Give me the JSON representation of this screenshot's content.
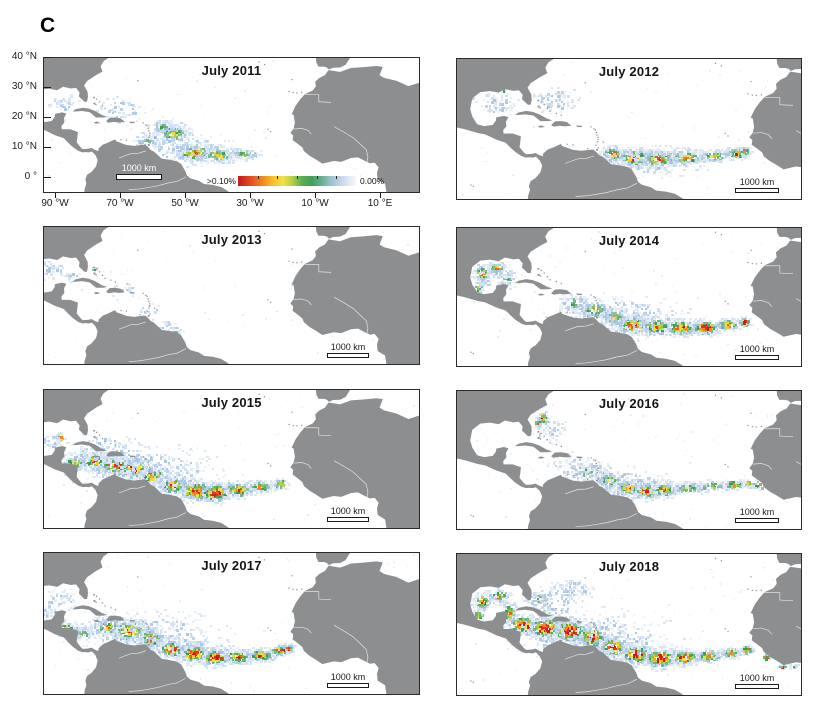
{
  "figure": {
    "panel_label": "C",
    "scalebar_label": "1000 km",
    "colorbar": {
      "left_label": ">0.10%",
      "right_label": "0.00%"
    },
    "axes": {
      "y_labels": [
        {
          "text": "40 °N",
          "lat": 40
        },
        {
          "text": "30 °N",
          "lat": 30
        },
        {
          "text": "20 °N",
          "lat": 20
        },
        {
          "text": "10 °N",
          "lat": 10
        },
        {
          "text": "0 °",
          "lat": 0
        }
      ],
      "x_labels": [
        {
          "text": "90 °W",
          "lon": -90
        },
        {
          "text": "70 °W",
          "lon": -70
        },
        {
          "text": "50 °W",
          "lon": -50
        },
        {
          "text": "30 °W",
          "lon": -30
        },
        {
          "text": "10 °W",
          "lon": -10
        },
        {
          "text": "10 °E",
          "lon": 10
        }
      ]
    },
    "land_color": "#8c8e90",
    "ocean_color": "#ffffff"
  },
  "map_data": {
    "type": "map-grid",
    "description": "Monthly Sargassum areal coverage (%) in the Atlantic, July of 2011-2018; color scale from >0.10% (red) to 0.00% (white-blue)",
    "bloom_format": [
      "lon",
      "lat",
      "radius_lon_deg",
      "radius_lat_deg",
      "n_points",
      "intensity_0_to_1"
    ],
    "panels": [
      {
        "title": "July 2011",
        "year": 2011,
        "month": "July",
        "blooms": [
          [
            -54,
            14.8,
            4,
            2.6,
            120,
            0.55
          ],
          [
            -57,
            17,
            3,
            2,
            50,
            0.3
          ],
          [
            -47.5,
            8.3,
            5,
            2.3,
            160,
            0.62
          ],
          [
            -40,
            7.6,
            4.5,
            2,
            100,
            0.45
          ],
          [
            -32,
            7.8,
            4,
            1.5,
            55,
            0.35
          ],
          [
            -62,
            12.5,
            3,
            2,
            40,
            0.25
          ],
          [
            -70,
            23,
            5,
            3,
            30,
            0.07
          ],
          [
            -88,
            25,
            3,
            2,
            22,
            0.08
          ],
          [
            -50,
            10,
            10,
            4,
            90,
            0.05
          ]
        ]
      },
      {
        "title": "July 2012",
        "year": 2012,
        "month": "July",
        "blooms": [
          [
            -57,
            9.5,
            2.5,
            2,
            80,
            0.68
          ],
          [
            -51,
            8.3,
            4,
            2.4,
            170,
            0.8
          ],
          [
            -44,
            8,
            4.5,
            2,
            130,
            0.62
          ],
          [
            -36,
            8.5,
            4.5,
            1.8,
            100,
            0.55
          ],
          [
            -28,
            9,
            4,
            1.5,
            80,
            0.5
          ],
          [
            -21.5,
            9.8,
            2.5,
            1.4,
            60,
            0.55
          ],
          [
            -18.8,
            10.3,
            1.2,
            1,
            25,
            0.78
          ],
          [
            -90,
            25.5,
            4,
            2.5,
            45,
            0.1
          ],
          [
            -73,
            27,
            5,
            3,
            45,
            0.07
          ],
          [
            -88.3,
            30.2,
            0.6,
            0.5,
            7,
            0.55
          ],
          [
            -97.5,
            28,
            0.6,
            0.5,
            5,
            0.5
          ],
          [
            -47,
            7.2,
            13,
            3.5,
            140,
            0.05
          ]
        ]
      },
      {
        "title": "July 2013",
        "year": 2013,
        "month": "July",
        "blooms": [
          [
            -91.5,
            25.5,
            3,
            2,
            25,
            0.12
          ],
          [
            -95,
            27.5,
            2,
            1.5,
            14,
            0.1
          ],
          [
            -85.5,
            24,
            2,
            1.5,
            10,
            0.08
          ],
          [
            -78.3,
            26.4,
            0.7,
            0.6,
            6,
            0.45
          ],
          [
            -53,
            5.6,
            1.2,
            1.8,
            14,
            0.5
          ],
          [
            -55.5,
            7.5,
            2,
            1.5,
            10,
            0.15
          ],
          [
            -61,
            12.5,
            2.5,
            2,
            8,
            0.08
          ],
          [
            -70,
            20,
            4,
            3,
            8,
            0.05
          ]
        ]
      },
      {
        "title": "July 2014",
        "year": 2014,
        "month": "July",
        "blooms": [
          [
            -94.5,
            25.3,
            2.3,
            2.3,
            55,
            0.6
          ],
          [
            -90.5,
            27,
            2.5,
            1.5,
            45,
            0.5
          ],
          [
            -95.6,
            20.8,
            1.2,
            1.2,
            25,
            0.72
          ],
          [
            -87.5,
            23.5,
            2,
            2,
            28,
            0.3
          ],
          [
            -68,
            15.5,
            3.5,
            2.2,
            60,
            0.35
          ],
          [
            -62.5,
            13.5,
            3.5,
            2.5,
            80,
            0.5
          ],
          [
            -56.5,
            11,
            3,
            2,
            85,
            0.55
          ],
          [
            -51,
            8.5,
            4,
            2.5,
            150,
            0.7
          ],
          [
            -44.5,
            8,
            4,
            2.2,
            140,
            0.65
          ],
          [
            -37.5,
            7.5,
            4,
            2,
            140,
            0.75
          ],
          [
            -30.5,
            7.5,
            3.5,
            1.8,
            150,
            0.9
          ],
          [
            -24,
            8.5,
            3,
            1.5,
            80,
            0.7
          ],
          [
            -19.2,
            9.3,
            1.5,
            1.2,
            40,
            0.85
          ],
          [
            -55,
            11,
            14,
            5,
            170,
            0.05
          ],
          [
            -91,
            24,
            5,
            3.5,
            45,
            0.06
          ]
        ]
      },
      {
        "title": "July 2015",
        "year": 2015,
        "month": "July",
        "blooms": [
          [
            -84.5,
            16.5,
            3,
            2,
            70,
            0.5
          ],
          [
            -78.5,
            17,
            4,
            2.5,
            90,
            0.52
          ],
          [
            -72,
            15.5,
            4.5,
            2.5,
            150,
            0.75
          ],
          [
            -66,
            14.5,
            4,
            2.5,
            140,
            0.75
          ],
          [
            -60.5,
            12,
            3.5,
            2.5,
            95,
            0.6
          ],
          [
            -54,
            9,
            4,
            2.5,
            130,
            0.65
          ],
          [
            -47,
            7,
            4.5,
            2.5,
            200,
            0.9
          ],
          [
            -41,
            6.5,
            4,
            2.5,
            170,
            0.85
          ],
          [
            -34,
            7.5,
            4,
            2,
            110,
            0.6
          ],
          [
            -27,
            8.5,
            3.5,
            1.5,
            70,
            0.5
          ],
          [
            -21,
            9.5,
            2,
            1.2,
            45,
            0.6
          ],
          [
            -89,
            24.8,
            1,
            1,
            14,
            0.75
          ],
          [
            -91.5,
            23.5,
            3,
            2,
            22,
            0.15
          ],
          [
            -62,
            13.5,
            16,
            6,
            220,
            0.05
          ],
          [
            -75,
            20.5,
            8,
            4,
            80,
            0.06
          ]
        ]
      },
      {
        "title": "July 2016",
        "year": 2016,
        "month": "July",
        "blooms": [
          [
            -77.2,
            31.5,
            0.9,
            1.7,
            30,
            0.85
          ],
          [
            -78.6,
            29.5,
            0.8,
            1.2,
            14,
            0.6
          ],
          [
            -75,
            27.5,
            4,
            3,
            30,
            0.06
          ],
          [
            -65,
            14,
            5,
            2.5,
            60,
            0.25
          ],
          [
            -58,
            11,
            3.5,
            2,
            75,
            0.45
          ],
          [
            -52.5,
            8.5,
            3.5,
            2.2,
            110,
            0.6
          ],
          [
            -47.5,
            7.5,
            3,
            2,
            130,
            0.85
          ],
          [
            -42.5,
            8,
            3.5,
            2,
            100,
            0.6
          ],
          [
            -35.5,
            8.5,
            4,
            1.5,
            55,
            0.4
          ],
          [
            -28.5,
            9,
            4,
            1.3,
            50,
            0.45
          ],
          [
            -22,
            9.5,
            2.5,
            1.2,
            45,
            0.55
          ],
          [
            -18.2,
            9.8,
            1.2,
            1,
            18,
            0.7
          ],
          [
            -15,
            9.5,
            1.8,
            1.6,
            16,
            0.45
          ],
          [
            -55,
            9.5,
            12,
            4,
            120,
            0.05
          ],
          [
            -68,
            16,
            6,
            3,
            40,
            0.06
          ]
        ]
      },
      {
        "title": "July 2017",
        "year": 2017,
        "month": "July",
        "blooms": [
          [
            -87,
            16,
            2.5,
            1.8,
            50,
            0.5
          ],
          [
            -82,
            14.5,
            3,
            2,
            50,
            0.35
          ],
          [
            -74,
            16.5,
            4.5,
            2.5,
            110,
            0.5
          ],
          [
            -67.5,
            15.5,
            4.5,
            3,
            160,
            0.6
          ],
          [
            -61,
            13,
            3.5,
            2.5,
            130,
            0.65
          ],
          [
            -54.5,
            9.5,
            4,
            2.5,
            140,
            0.65
          ],
          [
            -47.5,
            8,
            4,
            2.5,
            170,
            0.8
          ],
          [
            -41,
            6.8,
            4,
            2.2,
            150,
            0.78
          ],
          [
            -34,
            7,
            4,
            1.8,
            120,
            0.65
          ],
          [
            -27,
            7.5,
            3.5,
            1.5,
            110,
            0.7
          ],
          [
            -21,
            9,
            2.5,
            1.3,
            60,
            0.75
          ],
          [
            -18.2,
            9.6,
            1.2,
            1,
            30,
            0.85
          ],
          [
            -60,
            13,
            16,
            6,
            200,
            0.05
          ],
          [
            -88,
            24,
            5,
            3,
            30,
            0.06
          ],
          [
            -93.5,
            21,
            2,
            1.5,
            12,
            0.2
          ]
        ]
      },
      {
        "title": "July 2018",
        "year": 2018,
        "month": "July",
        "blooms": [
          [
            -94.5,
            25,
            2.3,
            2.3,
            60,
            0.65
          ],
          [
            -89.8,
            26.8,
            2.5,
            1.5,
            45,
            0.55
          ],
          [
            -95.8,
            20.8,
            1.3,
            1.3,
            30,
            0.7
          ],
          [
            -87,
            21.5,
            2,
            2.5,
            55,
            0.6
          ],
          [
            -83,
            17.5,
            4,
            2.5,
            130,
            0.8
          ],
          [
            -76.5,
            16.5,
            4.5,
            2.8,
            200,
            0.85
          ],
          [
            -69.5,
            15.5,
            4.5,
            3,
            240,
            0.9
          ],
          [
            -63,
            13.5,
            3.5,
            2.8,
            150,
            0.85
          ],
          [
            -57,
            10.5,
            3.5,
            2.5,
            140,
            0.8
          ],
          [
            -50.5,
            8,
            4,
            2.5,
            170,
            0.85
          ],
          [
            -43.5,
            6.8,
            4,
            2.5,
            190,
            0.9
          ],
          [
            -36.5,
            7,
            4,
            2,
            130,
            0.7
          ],
          [
            -29.5,
            7.5,
            3.5,
            1.5,
            90,
            0.6
          ],
          [
            -23,
            8.5,
            2.5,
            1.2,
            70,
            0.65
          ],
          [
            -18.5,
            9.5,
            1.5,
            1,
            40,
            0.75
          ],
          [
            -12.8,
            7.2,
            0.8,
            0.8,
            10,
            0.7
          ],
          [
            -8,
            4,
            1.2,
            0.5,
            10,
            0.65
          ],
          [
            -5,
            4.5,
            1,
            0.5,
            8,
            0.6
          ],
          [
            -74,
            25,
            6,
            4,
            70,
            0.09
          ],
          [
            -68,
            29,
            4,
            2.5,
            40,
            0.07
          ],
          [
            -62,
            13,
            17,
            6.5,
            240,
            0.05
          ],
          [
            -79,
            26,
            3,
            2,
            30,
            0.2
          ]
        ]
      }
    ]
  }
}
